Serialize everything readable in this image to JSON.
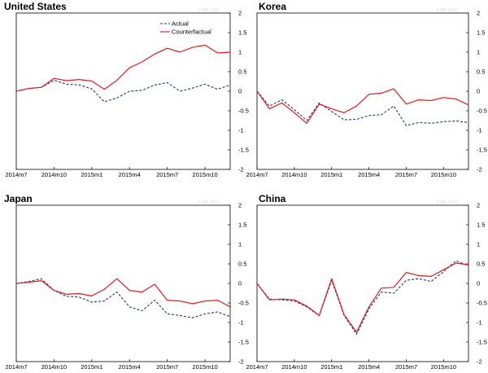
{
  "watermark": "© IMF 2016",
  "chart_data": [
    {
      "type": "line",
      "title": "United States",
      "x": [
        "2014m7",
        "2014m8",
        "2014m9",
        "2014m10",
        "2014m11",
        "2014m12",
        "2015m1",
        "2015m2",
        "2015m3",
        "2015m4",
        "2015m5",
        "2015m6",
        "2015m7",
        "2015m8",
        "2015m9",
        "2015m10",
        "2015m11",
        "2015m12"
      ],
      "xtick_labels": [
        "2014m7",
        "2014m10",
        "2015m1",
        "2015m4",
        "2015m7",
        "2015m10"
      ],
      "ylim": [
        -2,
        2
      ],
      "yticks": [
        "2",
        "1.5",
        "1",
        "0.5",
        "0",
        "-0.5",
        "-1",
        "-1.5",
        "-2"
      ],
      "legend": {
        "position": "top-center",
        "entries": [
          "Actual",
          "Counterfactual"
        ]
      },
      "series": [
        {
          "name": "Actual",
          "style": "dashed",
          "color": "#1f3a7a",
          "values": [
            0.0,
            0.07,
            0.1,
            0.28,
            0.18,
            0.16,
            0.06,
            -0.27,
            -0.17,
            0.0,
            0.02,
            0.16,
            0.22,
            0.0,
            0.08,
            0.18,
            0.05,
            0.16
          ]
        },
        {
          "name": "Counterfactual",
          "style": "solid",
          "color": "#e8181e",
          "values": [
            0.0,
            0.07,
            0.1,
            0.33,
            0.27,
            0.3,
            0.26,
            0.05,
            0.28,
            0.6,
            0.75,
            0.95,
            1.1,
            1.0,
            1.12,
            1.18,
            0.98,
            1.0
          ]
        }
      ]
    },
    {
      "type": "line",
      "title": "Korea",
      "x": [
        "2014m7",
        "2014m8",
        "2014m9",
        "2014m10",
        "2014m11",
        "2014m12",
        "2015m1",
        "2015m2",
        "2015m3",
        "2015m4",
        "2015m5",
        "2015m6",
        "2015m7",
        "2015m8",
        "2015m9",
        "2015m10",
        "2015m11",
        "2015m12"
      ],
      "xtick_labels": [
        "2014m7",
        "2014m10",
        "2015m1",
        "2015m4",
        "2015m7",
        "2015m10"
      ],
      "ylim": [
        -2,
        2
      ],
      "yticks": [
        "2",
        "1.5",
        "1",
        "0.5",
        "0",
        "-0.5",
        "-1",
        "-1.5",
        "-2"
      ],
      "series": [
        {
          "name": "Actual",
          "style": "dashed",
          "color": "#1f3a7a",
          "values": [
            0.0,
            -0.38,
            -0.22,
            -0.47,
            -0.75,
            -0.3,
            -0.52,
            -0.73,
            -0.72,
            -0.62,
            -0.6,
            -0.38,
            -0.88,
            -0.8,
            -0.82,
            -0.78,
            -0.76,
            -0.8
          ]
        },
        {
          "name": "Counterfactual",
          "style": "solid",
          "color": "#e8181e",
          "values": [
            0.0,
            -0.45,
            -0.3,
            -0.55,
            -0.82,
            -0.33,
            -0.45,
            -0.55,
            -0.38,
            -0.08,
            -0.05,
            0.06,
            -0.33,
            -0.22,
            -0.24,
            -0.16,
            -0.2,
            -0.35
          ]
        }
      ]
    },
    {
      "type": "line",
      "title": "Japan",
      "x": [
        "2014m7",
        "2014m8",
        "2014m9",
        "2014m10",
        "2014m11",
        "2014m12",
        "2015m1",
        "2015m2",
        "2015m3",
        "2015m4",
        "2015m5",
        "2015m6",
        "2015m7",
        "2015m8",
        "2015m9",
        "2015m10",
        "2015m11",
        "2015m12"
      ],
      "xtick_labels": [
        "2014m7",
        "2014m10",
        "2015m1",
        "2015m4",
        "2015m7",
        "2015m10"
      ],
      "ylim": [
        -2,
        2
      ],
      "yticks": [
        "2",
        "1.5",
        "1",
        "0.5",
        "0",
        "-0.5",
        "-1",
        "-1.5",
        "-2"
      ],
      "series": [
        {
          "name": "Actual",
          "style": "dashed",
          "color": "#1f3a7a",
          "values": [
            0.0,
            0.05,
            0.12,
            -0.18,
            -0.33,
            -0.35,
            -0.48,
            -0.45,
            -0.22,
            -0.6,
            -0.7,
            -0.43,
            -0.78,
            -0.82,
            -0.88,
            -0.78,
            -0.73,
            -0.85
          ]
        },
        {
          "name": "Counterfactual",
          "style": "solid",
          "color": "#e8181e",
          "values": [
            0.0,
            0.03,
            0.07,
            -0.18,
            -0.28,
            -0.26,
            -0.32,
            -0.15,
            0.12,
            -0.18,
            -0.22,
            -0.02,
            -0.43,
            -0.45,
            -0.52,
            -0.45,
            -0.43,
            -0.6
          ]
        }
      ]
    },
    {
      "type": "line",
      "title": "China",
      "x": [
        "2014m7",
        "2014m8",
        "2014m9",
        "2014m10",
        "2014m11",
        "2014m12",
        "2015m1",
        "2015m2",
        "2015m3",
        "2015m4",
        "2015m5",
        "2015m6",
        "2015m7",
        "2015m8",
        "2015m9",
        "2015m10",
        "2015m11",
        "2015m12"
      ],
      "xtick_labels": [
        "2014m7",
        "2014m10",
        "2015m1",
        "2015m4",
        "2015m7",
        "2015m10"
      ],
      "ylim": [
        -2,
        2
      ],
      "yticks": [
        "2",
        "1.5",
        "1",
        "0.5",
        "0",
        "-0.5",
        "-1",
        "-1.5",
        "-2"
      ],
      "series": [
        {
          "name": "Actual",
          "style": "dashed",
          "color": "#1f3a7a",
          "values": [
            0.0,
            -0.4,
            -0.42,
            -0.45,
            -0.6,
            -0.83,
            0.08,
            -0.82,
            -1.3,
            -0.65,
            -0.22,
            -0.25,
            0.08,
            0.12,
            0.05,
            0.3,
            0.58,
            0.45
          ]
        },
        {
          "name": "Counterfactual",
          "style": "solid",
          "color": "#e8181e",
          "values": [
            0.0,
            -0.42,
            -0.4,
            -0.42,
            -0.58,
            -0.82,
            0.12,
            -0.8,
            -1.25,
            -0.6,
            -0.12,
            -0.1,
            0.28,
            0.2,
            0.18,
            0.35,
            0.52,
            0.48
          ]
        }
      ]
    }
  ]
}
